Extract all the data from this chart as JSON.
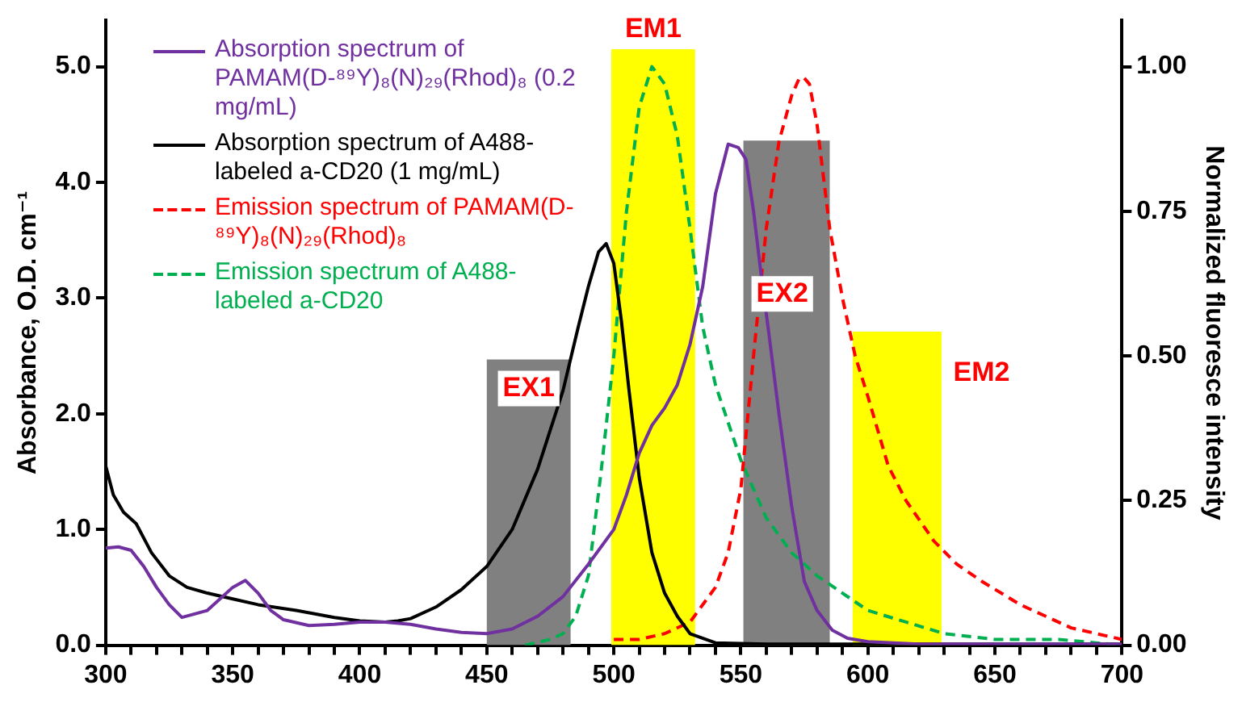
{
  "chart_data": {
    "type": "line",
    "ylabel": "Absorbance, O.D. cm⁻¹",
    "y2label": "Normalized fluoresce intensity",
    "xlim": [
      300,
      700
    ],
    "xticks": [
      300,
      {
        "value": 310,
        "label": null
      },
      {
        "value": 320,
        "label": null
      },
      {
        "value": 330,
        "label": null
      },
      {
        "value": 340,
        "label": null
      },
      350,
      {
        "value": 360,
        "label": null
      },
      {
        "value": 370,
        "label": null
      },
      {
        "value": 380,
        "label": null
      },
      {
        "value": 390,
        "label": null
      },
      400,
      {
        "value": 410,
        "label": null
      },
      {
        "value": 420,
        "label": null
      },
      {
        "value": 430,
        "label": null
      },
      {
        "value": 440,
        "label": null
      },
      450,
      {
        "value": 460,
        "label": null
      },
      {
        "value": 470,
        "label": null
      },
      {
        "value": 480,
        "label": null
      },
      {
        "value": 490,
        "label": null
      },
      500,
      {
        "value": 510,
        "label": null
      },
      {
        "value": 520,
        "label": null
      },
      {
        "value": 530,
        "label": null
      },
      {
        "value": 540,
        "label": null
      },
      550,
      {
        "value": 560,
        "label": null
      },
      {
        "value": 570,
        "label": null
      },
      {
        "value": 580,
        "label": null
      },
      {
        "value": 590,
        "label": null
      },
      600,
      {
        "value": 610,
        "label": null
      },
      {
        "value": 620,
        "label": null
      },
      {
        "value": 630,
        "label": null
      },
      {
        "value": 640,
        "label": null
      },
      650,
      {
        "value": 660,
        "label": null
      },
      {
        "value": 670,
        "label": null
      },
      {
        "value": 680,
        "label": null
      },
      {
        "value": 690,
        "label": null
      },
      700
    ],
    "ylim": [
      0,
      5.4
    ],
    "yticks": [
      {
        "value": 0,
        "label": "0.0"
      },
      {
        "value": 1,
        "label": "1.0"
      },
      {
        "value": 2,
        "label": "2.0"
      },
      {
        "value": 3,
        "label": "3.0"
      },
      {
        "value": 4,
        "label": "4.0"
      },
      {
        "value": 5,
        "label": "5.0"
      }
    ],
    "y2lim": [
      0,
      1.08
    ],
    "y2ticks": [
      {
        "value": 0,
        "label": "0.00"
      },
      {
        "value": 0.25,
        "label": "0.25"
      },
      {
        "value": 0.5,
        "label": "0.50"
      },
      {
        "value": 0.75,
        "label": "0.75"
      },
      {
        "value": 1,
        "label": "1.00"
      }
    ],
    "legend": "top left",
    "grid": false,
    "annotations": [
      "EX1",
      "EM1",
      "EX2",
      "EM2"
    ],
    "series": [
      {
        "type": "histogram",
        "bins": [
          450,
          483
        ],
        "values": [
          2.47
        ],
        "color": "#808080"
      },
      {
        "type": "histogram",
        "bins": [
          499,
          532
        ],
        "values": [
          5.15
        ],
        "color": "#ffff00"
      },
      {
        "type": "histogram",
        "bins": [
          551,
          585
        ],
        "values": [
          4.36
        ],
        "color": "#808080"
      },
      {
        "type": "histogram",
        "bins": [
          594,
          629
        ],
        "values": [
          2.71
        ],
        "color": "#ffff00"
      },
      {
        "name": "Absorption spectrum of PAMAM(D-⁸⁹Y)₈(N)₂₉(Rhod)₈ (0.2 mg/mL)",
        "color": "#7030a0",
        "x": [
          300,
          305,
          310,
          315,
          320,
          325,
          330,
          340,
          350,
          355,
          360,
          365,
          370,
          380,
          390,
          400,
          410,
          420,
          430,
          440,
          450,
          460,
          470,
          480,
          490,
          500,
          505,
          510,
          515,
          520,
          525,
          530,
          535,
          540,
          545,
          549,
          552,
          555,
          558,
          561,
          565,
          570,
          575,
          580,
          586,
          592,
          600,
          620,
          650,
          700
        ],
        "values": [
          0.84,
          0.85,
          0.82,
          0.68,
          0.5,
          0.35,
          0.24,
          0.3,
          0.5,
          0.56,
          0.45,
          0.3,
          0.22,
          0.17,
          0.18,
          0.2,
          0.2,
          0.18,
          0.14,
          0.11,
          0.1,
          0.14,
          0.25,
          0.42,
          0.7,
          1.0,
          1.3,
          1.66,
          1.9,
          2.05,
          2.25,
          2.6,
          3.1,
          3.9,
          4.33,
          4.3,
          4.2,
          3.75,
          3.2,
          2.7,
          2.0,
          1.2,
          0.55,
          0.3,
          0.13,
          0.06,
          0.03,
          0.01,
          0.01,
          0.01
        ]
      },
      {
        "name": "Absorption spectrum of A488-labeled a-CD20 (1 mg/mL)",
        "color": "#000000",
        "x": [
          300,
          303,
          307,
          312,
          318,
          325,
          332,
          340,
          350,
          360,
          375,
          390,
          400,
          410,
          415,
          420,
          430,
          440,
          450,
          460,
          470,
          480,
          486,
          490,
          494,
          497,
          500,
          503,
          506,
          510,
          515,
          520,
          525,
          530,
          540,
          560,
          600,
          650,
          700
        ],
        "values": [
          1.55,
          1.3,
          1.15,
          1.05,
          0.8,
          0.6,
          0.5,
          0.45,
          0.4,
          0.35,
          0.3,
          0.24,
          0.21,
          0.2,
          0.21,
          0.23,
          0.33,
          0.48,
          0.68,
          1.0,
          1.52,
          2.2,
          2.75,
          3.1,
          3.4,
          3.47,
          3.3,
          2.8,
          2.2,
          1.45,
          0.8,
          0.45,
          0.25,
          0.1,
          0.02,
          0.01,
          0.01,
          0.01,
          0.01
        ]
      },
      {
        "name": "Emission spectrum of PAMAM(D-⁸⁹Y)₈(N)₂₉(Rhod)₈",
        "color": "#ff0000",
        "axis": "y2",
        "line_style": "dashed",
        "x": [
          500,
          510,
          520,
          530,
          540,
          545,
          550,
          555,
          560,
          565,
          570,
          573,
          575,
          577,
          580,
          585,
          590,
          595,
          600,
          608,
          615,
          626,
          635,
          645,
          660,
          680,
          700
        ],
        "values": [
          0.01,
          0.01,
          0.02,
          0.04,
          0.1,
          0.16,
          0.27,
          0.5,
          0.72,
          0.87,
          0.95,
          0.98,
          0.98,
          0.97,
          0.9,
          0.72,
          0.6,
          0.5,
          0.43,
          0.31,
          0.25,
          0.18,
          0.14,
          0.11,
          0.07,
          0.03,
          0.01
        ]
      },
      {
        "name": "Emission spectrum of A488-labeled a-CD20",
        "color": "#00b050",
        "axis": "y2",
        "line_style": "dashed",
        "x": [
          465,
          475,
          480,
          485,
          490,
          495,
          500,
          505,
          510,
          515,
          520,
          525,
          530,
          535,
          540,
          550,
          560,
          570,
          580,
          590,
          600,
          615,
          630,
          650,
          675,
          700
        ],
        "values": [
          0,
          0.01,
          0.02,
          0.05,
          0.12,
          0.3,
          0.5,
          0.75,
          0.93,
          1.0,
          0.97,
          0.88,
          0.72,
          0.55,
          0.45,
          0.32,
          0.22,
          0.16,
          0.12,
          0.09,
          0.06,
          0.04,
          0.02,
          0.01,
          0.01,
          0
        ]
      }
    ]
  }
}
